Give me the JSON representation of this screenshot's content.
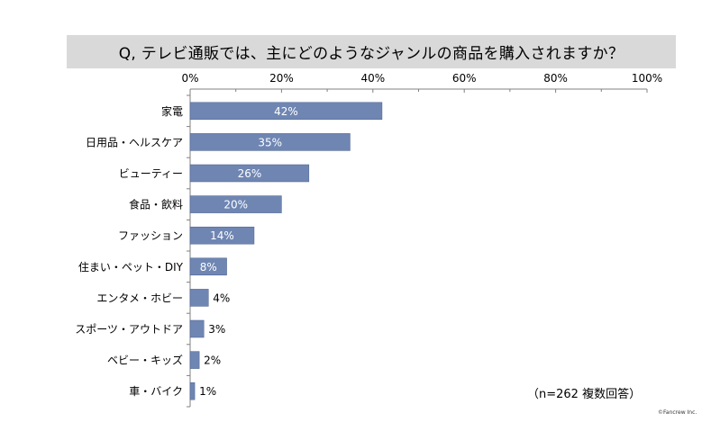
{
  "title": "Q, テレビ通販では、主にどのようなジャンルの商品を購入されますか？",
  "note": "（n=262 複数回答）",
  "copyright": "©Fancrew Inc.",
  "colors": {
    "bar": "#6f86b3",
    "bar_stroke": "#4a5f8c",
    "axis": "#808080",
    "title_band": "#d9d9d9"
  },
  "chart_data": {
    "type": "bar",
    "orientation": "horizontal",
    "categories": [
      "家電",
      "日用品・ヘルスケア",
      "ビューティー",
      "食品・飲料",
      "ファッション",
      "住まい・ペット・DIY",
      "エンタメ・ホビー",
      "スポーツ・アウトドア",
      "ベビー・キッズ",
      "車・バイク"
    ],
    "values": [
      42,
      35,
      26,
      20,
      14,
      8,
      4,
      3,
      2,
      1
    ],
    "data_labels": [
      "42%",
      "35%",
      "26%",
      "20%",
      "14%",
      "8%",
      "4%",
      "3%",
      "2%",
      "1%"
    ],
    "ticks": [
      "0%",
      "20%",
      "40%",
      "60%",
      "80%",
      "100%"
    ],
    "xlim": [
      0,
      100
    ],
    "axis_position": "top",
    "grid": false
  }
}
